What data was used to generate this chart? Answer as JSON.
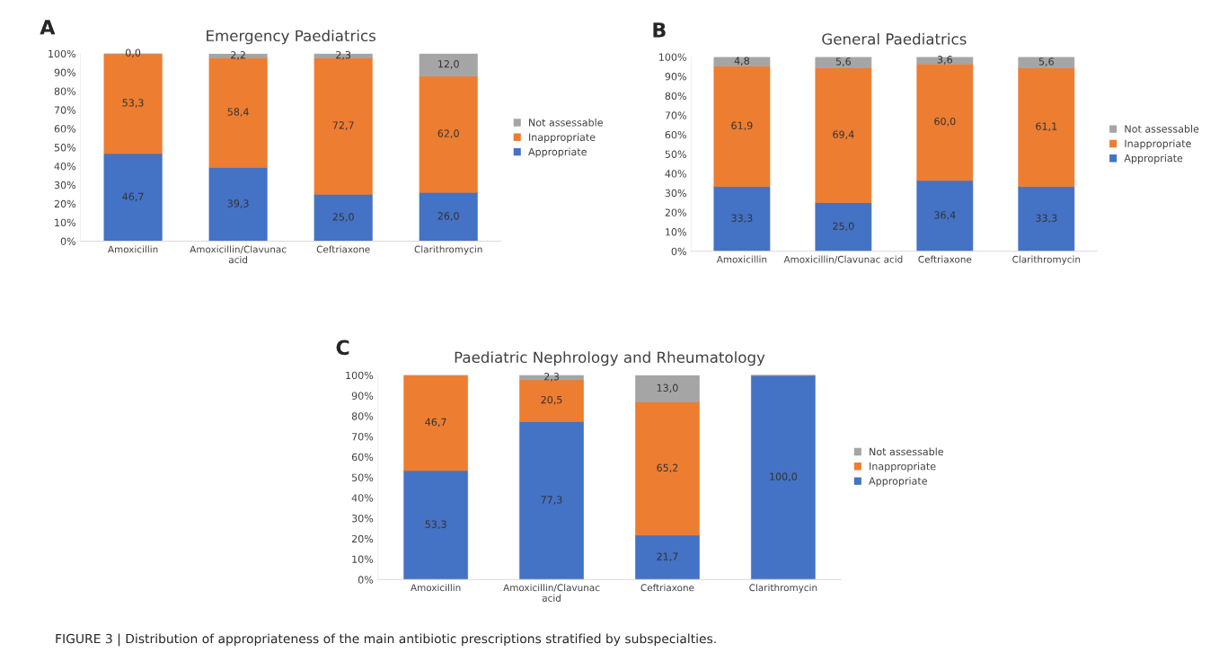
{
  "chart_data": [
    {
      "type": "bar",
      "stacked": true,
      "title": "Emergency Paediatrics",
      "annotations": [
        "A"
      ],
      "categories": [
        "Amoxicillin",
        "Amoxicillin/Clavunac\nacid",
        "Ceftriaxone",
        "Clarithromycin"
      ],
      "series": [
        {
          "name": "Appropriate",
          "color": "#4472c4",
          "values": [
            46.7,
            39.3,
            25.0,
            26.0
          ],
          "value_labels": [
            "46,7",
            "39,3",
            "25,0",
            "26,0"
          ]
        },
        {
          "name": "Inappropriate",
          "color": "#ed7d31",
          "values": [
            53.3,
            58.4,
            72.7,
            62.0
          ],
          "value_labels": [
            "53,3",
            "58,4",
            "72,7",
            "62,0"
          ]
        },
        {
          "name": "Not assessable",
          "color": "#a5a5a5",
          "values": [
            0.0,
            2.2,
            2.3,
            12.0
          ],
          "value_labels": [
            "0,0",
            "2,2",
            "2,3",
            "12,0"
          ]
        }
      ],
      "ylim": [
        0,
        100
      ],
      "yticks": [
        {
          "value": 0,
          "label": "0%"
        },
        {
          "value": 10,
          "label": "10%"
        },
        {
          "value": 20,
          "label": "20%"
        },
        {
          "value": 30,
          "label": "30%"
        },
        {
          "value": 40,
          "label": "40%"
        },
        {
          "value": 50,
          "label": "50%"
        },
        {
          "value": 60,
          "label": "60%"
        },
        {
          "value": 70,
          "label": "70%"
        },
        {
          "value": 80,
          "label": "80%"
        },
        {
          "value": 90,
          "label": "90%"
        },
        {
          "value": 100,
          "label": "100%"
        }
      ],
      "grid": false,
      "legend": "right"
    },
    {
      "type": "bar",
      "stacked": true,
      "title": "General Paediatrics",
      "annotations": [
        "B"
      ],
      "categories": [
        "Amoxicillin",
        "Amoxicillin/Clavunac acid",
        "Ceftriaxone",
        "Clarithromycin"
      ],
      "series": [
        {
          "name": "Appropriate",
          "color": "#4472c4",
          "values": [
            33.3,
            25.0,
            36.4,
            33.3
          ],
          "value_labels": [
            "33,3",
            "25,0",
            "36,4",
            "33,3"
          ]
        },
        {
          "name": "Inappropriate",
          "color": "#ed7d31",
          "values": [
            61.9,
            69.4,
            60.0,
            61.1
          ],
          "value_labels": [
            "61,9",
            "69,4",
            "60,0",
            "61,1"
          ]
        },
        {
          "name": "Not assessable",
          "color": "#a5a5a5",
          "values": [
            4.8,
            5.6,
            3.6,
            5.6
          ],
          "value_labels": [
            "4,8",
            "5,6",
            "3,6",
            "5,6"
          ]
        }
      ],
      "ylim": [
        0,
        100
      ],
      "yticks": [
        {
          "value": 0,
          "label": "0%"
        },
        {
          "value": 10,
          "label": "10%"
        },
        {
          "value": 20,
          "label": "20%"
        },
        {
          "value": 30,
          "label": "30%"
        },
        {
          "value": 40,
          "label": "40%"
        },
        {
          "value": 50,
          "label": "50%"
        },
        {
          "value": 60,
          "label": "60%"
        },
        {
          "value": 70,
          "label": "70%"
        },
        {
          "value": 80,
          "label": "80%"
        },
        {
          "value": 90,
          "label": "90%"
        },
        {
          "value": 100,
          "label": "100%"
        }
      ],
      "grid": false,
      "legend": "right"
    },
    {
      "type": "bar",
      "stacked": true,
      "title": "Paediatric Nephrology and Rheumatology",
      "annotations": [
        "C",
        "FIGURE 3 | Distribution of appropriateness of the main antibiotic prescriptions stratified by subspecialties."
      ],
      "categories": [
        "Amoxicillin",
        "Amoxicillin/Clavunac\nacid",
        "Ceftriaxone",
        "Clarithromycin"
      ],
      "series": [
        {
          "name": "Appropriate",
          "color": "#4472c4",
          "values": [
            53.3,
            77.3,
            21.7,
            100.0
          ],
          "value_labels": [
            "53,3",
            "77,3",
            "21,7",
            "100,0"
          ]
        },
        {
          "name": "Inappropriate",
          "color": "#ed7d31",
          "values": [
            46.7,
            20.5,
            65.2,
            0.0
          ],
          "value_labels": [
            "46,7",
            "20,5",
            "65,2",
            null
          ]
        },
        {
          "name": "Not assessable",
          "color": "#a5a5a5",
          "values": [
            0.0,
            2.3,
            13.0,
            0.0
          ],
          "value_labels": [
            null,
            "2,3",
            "13,0",
            null
          ]
        }
      ],
      "ylim": [
        0,
        100
      ],
      "yticks": [
        {
          "value": 0,
          "label": "0%"
        },
        {
          "value": 10,
          "label": "10%"
        },
        {
          "value": 20,
          "label": "20%"
        },
        {
          "value": 30,
          "label": "30%"
        },
        {
          "value": 40,
          "label": "40%"
        },
        {
          "value": 50,
          "label": "50%"
        },
        {
          "value": 60,
          "label": "60%"
        },
        {
          "value": 70,
          "label": "70%"
        },
        {
          "value": 80,
          "label": "80%"
        },
        {
          "value": 90,
          "label": "90%"
        },
        {
          "value": 100,
          "label": "100%"
        }
      ],
      "grid": false,
      "legend": "right"
    }
  ]
}
